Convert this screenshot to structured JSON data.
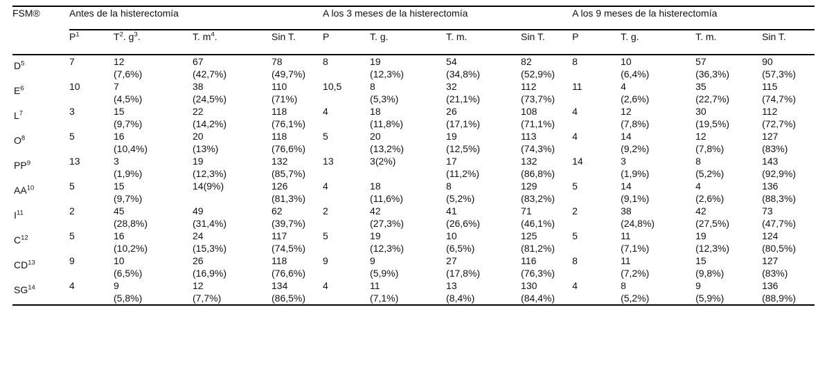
{
  "table": {
    "corner_label": "FSM®",
    "groups": [
      {
        "label": "Antes de la histerectomía"
      },
      {
        "label": "A los 3 meses de la histerectomía"
      },
      {
        "label": "A los 9 meses de la histerectomía"
      }
    ],
    "columns": [
      {
        "segs": [
          [
            "t",
            "P"
          ],
          [
            "sup",
            "1"
          ]
        ]
      },
      {
        "segs": [
          [
            "t",
            "T"
          ],
          [
            "sup",
            "2"
          ],
          [
            "t",
            ". g"
          ],
          [
            "sup",
            "3"
          ],
          [
            "t",
            "."
          ]
        ]
      },
      {
        "segs": [
          [
            "t",
            "T. m"
          ],
          [
            "sup",
            "4"
          ],
          [
            "t",
            "."
          ]
        ]
      },
      {
        "segs": [
          [
            "t",
            "Sin T."
          ]
        ]
      },
      {
        "segs": [
          [
            "t",
            "P"
          ]
        ]
      },
      {
        "segs": [
          [
            "t",
            "T. g."
          ]
        ]
      },
      {
        "segs": [
          [
            "t",
            "T. m."
          ]
        ]
      },
      {
        "segs": [
          [
            "t",
            "Sin T."
          ]
        ]
      },
      {
        "segs": [
          [
            "t",
            "P"
          ]
        ]
      },
      {
        "segs": [
          [
            "t",
            "T. g."
          ]
        ]
      },
      {
        "segs": [
          [
            "t",
            "T. m."
          ]
        ]
      },
      {
        "segs": [
          [
            "t",
            "Sin T."
          ]
        ]
      }
    ],
    "rows": [
      {
        "label": {
          "base": "D",
          "sup": "5"
        },
        "cells": [
          {
            "v": "7"
          },
          {
            "v": "12",
            "p": "(7,6%)"
          },
          {
            "v": "67",
            "p": "(42,7%)"
          },
          {
            "v": "78",
            "p": "(49,7%)"
          },
          {
            "v": "8"
          },
          {
            "v": "19",
            "p": "(12,3%)"
          },
          {
            "v": "54",
            "p": "(34,8%)"
          },
          {
            "v": "82",
            "p": "(52,9%)"
          },
          {
            "v": "8"
          },
          {
            "v": "10",
            "p": "(6,4%)"
          },
          {
            "v": "57",
            "p": "(36,3%)"
          },
          {
            "v": "90",
            "p": "(57,3%)"
          }
        ]
      },
      {
        "label": {
          "base": "E",
          "sup": "6"
        },
        "cells": [
          {
            "v": "10"
          },
          {
            "v": "7",
            "p": "(4,5%)"
          },
          {
            "v": "38",
            "p": "(24,5%)"
          },
          {
            "v": "110",
            "p": "(71%)"
          },
          {
            "v": "10,5"
          },
          {
            "v": "8",
            "p": "(5,3%)"
          },
          {
            "v": "32",
            "p": "(21,1%)"
          },
          {
            "v": "112",
            "p": "(73,7%)"
          },
          {
            "v": "11"
          },
          {
            "v": "4",
            "p": "(2,6%)"
          },
          {
            "v": "35",
            "p": "(22,7%)"
          },
          {
            "v": "115",
            "p": "(74,7%)"
          }
        ]
      },
      {
        "label": {
          "base": "L",
          "sup": "7"
        },
        "cells": [
          {
            "v": "3"
          },
          {
            "v": "15",
            "p": "(9,7%)"
          },
          {
            "v": "22",
            "p": "(14,2%)"
          },
          {
            "v": "118",
            "p": "(76,1%)"
          },
          {
            "v": "4"
          },
          {
            "v": "18",
            "p": "(11,8%)"
          },
          {
            "v": "26",
            "p": "(17,1%)"
          },
          {
            "v": "108",
            "p": "(71,1%)"
          },
          {
            "v": "4"
          },
          {
            "v": "12",
            "p": "(7,8%)"
          },
          {
            "v": "30",
            "p": "(19,5%)"
          },
          {
            "v": "112",
            "p": "(72,7%)"
          }
        ]
      },
      {
        "label": {
          "base": "O",
          "sup": "8"
        },
        "cells": [
          {
            "v": "5"
          },
          {
            "v": "16",
            "p": "(10,4%)"
          },
          {
            "v": "20",
            "p": "(13%)"
          },
          {
            "v": "118",
            "p": "(76,6%)"
          },
          {
            "v": "5"
          },
          {
            "v": "20",
            "p": "(13,2%)"
          },
          {
            "v": "19",
            "p": "(12,5%)"
          },
          {
            "v": "113",
            "p": "(74,3%)"
          },
          {
            "v": "4"
          },
          {
            "v": "14",
            "p": "(9,2%)"
          },
          {
            "v": "12",
            "p": "(7,8%)"
          },
          {
            "v": "127",
            "p": "(83%)"
          }
        ]
      },
      {
        "label": {
          "base": "PP",
          "sup": "9"
        },
        "cells": [
          {
            "v": "13"
          },
          {
            "v": "3",
            "p": "(1,9%)"
          },
          {
            "v": "19",
            "p": "(12,3%)"
          },
          {
            "v": "132",
            "p": "(85,7%)"
          },
          {
            "v": "13"
          },
          {
            "v": "3(2%)"
          },
          {
            "v": "17",
            "p": "(11,2%)"
          },
          {
            "v": "132",
            "p": "(86,8%)"
          },
          {
            "v": "14"
          },
          {
            "v": "3",
            "p": "(1,9%)"
          },
          {
            "v": "8",
            "p": "(5,2%)"
          },
          {
            "v": "143",
            "p": "(92,9%)"
          }
        ]
      },
      {
        "label": {
          "base": "AA",
          "sup": "10"
        },
        "cells": [
          {
            "v": "5"
          },
          {
            "v": "15",
            "p": "(9,7%)"
          },
          {
            "v": "14(9%)"
          },
          {
            "v": "126",
            "p": "(81,3%)"
          },
          {
            "v": "4"
          },
          {
            "v": "18",
            "p": "(11,6%)"
          },
          {
            "v": "8",
            "p": "(5,2%)"
          },
          {
            "v": "129",
            "p": "(83,2%)"
          },
          {
            "v": "5"
          },
          {
            "v": "14",
            "p": "(9,1%)"
          },
          {
            "v": "4",
            "p": "(2,6%)"
          },
          {
            "v": "136",
            "p": "(88,3%)"
          }
        ]
      },
      {
        "label": {
          "base": "I",
          "sup": "11"
        },
        "cells": [
          {
            "v": "2"
          },
          {
            "v": "45",
            "p": "(28,8%)"
          },
          {
            "v": "49",
            "p": "(31,4%)"
          },
          {
            "v": "62",
            "p": "(39,7%)"
          },
          {
            "v": "2"
          },
          {
            "v": "42",
            "p": "(27,3%)"
          },
          {
            "v": "41",
            "p": "(26,6%)"
          },
          {
            "v": "71",
            "p": "(46,1%)"
          },
          {
            "v": "2"
          },
          {
            "v": "38",
            "p": "(24,8%)"
          },
          {
            "v": "42",
            "p": "(27,5%)"
          },
          {
            "v": "73",
            "p": "(47,7%)"
          }
        ]
      },
      {
        "label": {
          "base": "C",
          "sup": "12"
        },
        "cells": [
          {
            "v": "5"
          },
          {
            "v": "16",
            "p": "(10,2%)"
          },
          {
            "v": "24",
            "p": "(15,3%)"
          },
          {
            "v": "117",
            "p": "(74,5%)"
          },
          {
            "v": "5"
          },
          {
            "v": "19",
            "p": "(12,3%)"
          },
          {
            "v": "10",
            "p": "(6,5%)"
          },
          {
            "v": "125",
            "p": "(81,2%)"
          },
          {
            "v": "5"
          },
          {
            "v": "11",
            "p": "(7,1%)"
          },
          {
            "v": "19",
            "p": "(12,3%)"
          },
          {
            "v": "124",
            "p": "(80,5%)"
          }
        ]
      },
      {
        "label": {
          "base": "CD",
          "sup": "13"
        },
        "cells": [
          {
            "v": "9"
          },
          {
            "v": "10",
            "p": "(6,5%)"
          },
          {
            "v": "26",
            "p": "(16,9%)"
          },
          {
            "v": "118",
            "p": "(76,6%)"
          },
          {
            "v": "9"
          },
          {
            "v": "9",
            "p": "(5,9%)"
          },
          {
            "v": "27",
            "p": "(17,8%)"
          },
          {
            "v": "116",
            "p": "(76,3%)"
          },
          {
            "v": "8"
          },
          {
            "v": "11",
            "p": "(7,2%)"
          },
          {
            "v": "15",
            "p": "(9,8%)"
          },
          {
            "v": "127",
            "p": "(83%)"
          }
        ]
      },
      {
        "label": {
          "base": "SG",
          "sup": "14"
        },
        "cells": [
          {
            "v": "4"
          },
          {
            "v": "9",
            "p": "(5,8%)"
          },
          {
            "v": "12",
            "p": "(7,7%)"
          },
          {
            "v": "134",
            "p": "(86,5%)"
          },
          {
            "v": "4"
          },
          {
            "v": "11",
            "p": "(7,1%)"
          },
          {
            "v": "13",
            "p": "(8,4%)"
          },
          {
            "v": "130",
            "p": "(84,4%)"
          },
          {
            "v": "4"
          },
          {
            "v": "8",
            "p": "(5,2%)"
          },
          {
            "v": "9",
            "p": "(5,9%)"
          },
          {
            "v": "136",
            "p": "(88,9%)"
          }
        ]
      }
    ]
  }
}
